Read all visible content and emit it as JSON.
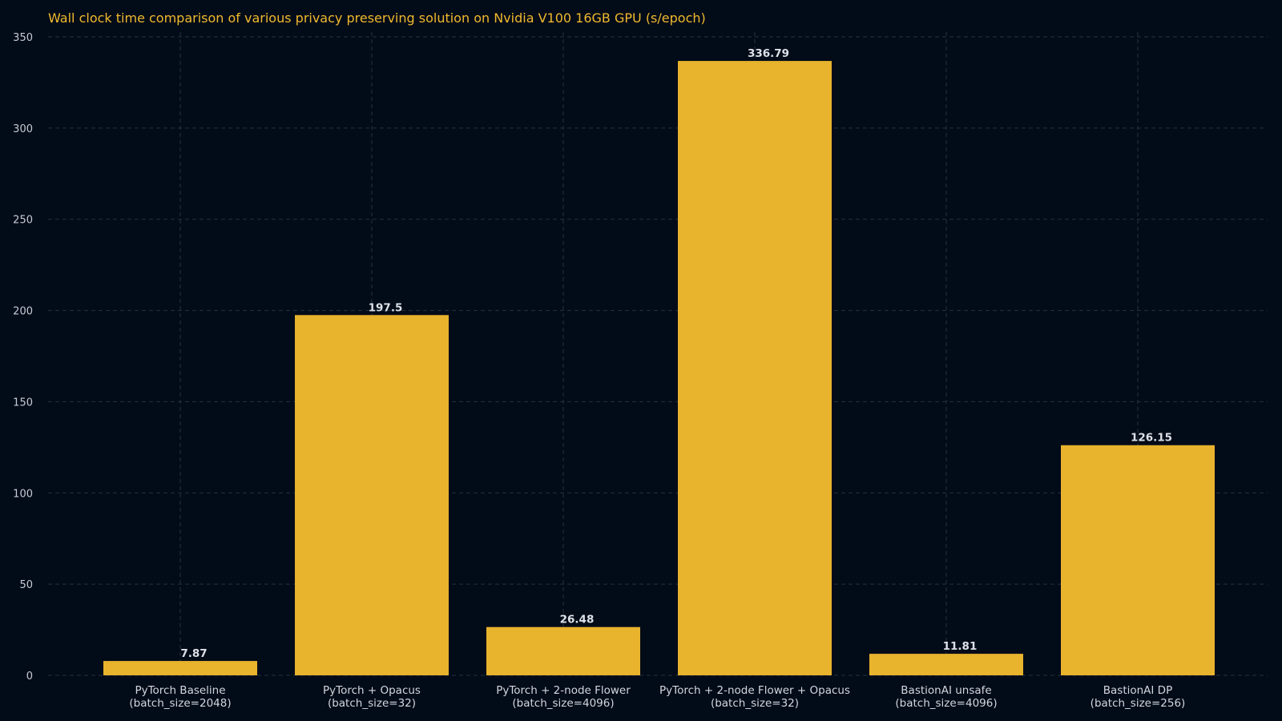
{
  "chart_data": {
    "type": "bar",
    "title": "Wall clock time comparison of various privacy preserving solution on Nvidia V100 16GB GPU (s/epoch)",
    "categories": [
      [
        "PyTorch Baseline",
        "(batch_size=2048)"
      ],
      [
        "PyTorch + Opacus",
        "(batch_size=32)"
      ],
      [
        "PyTorch + 2-node Flower",
        "(batch_size=4096)"
      ],
      [
        "PyTorch + 2-node Flower + Opacus",
        "(batch_size=32)"
      ],
      [
        "BastionAI unsafe",
        "(batch_size=4096)"
      ],
      [
        "BastionAI DP",
        "(batch_size=256)"
      ]
    ],
    "values": [
      7.87,
      197.5,
      26.48,
      336.79,
      11.81,
      126.15
    ],
    "data_labels": [
      "7.87",
      "197.5",
      "26.48",
      "336.79",
      "11.81",
      "126.15"
    ],
    "yticks": [
      0,
      50,
      100,
      150,
      200,
      250,
      300,
      350
    ],
    "ylim": [
      0,
      350
    ],
    "xlabel": "",
    "ylabel": "",
    "grid": true,
    "colors": {
      "background": "#020b18",
      "bar": "#f0b92e",
      "title": "#f0b92e",
      "grid": "#26313f"
    }
  }
}
